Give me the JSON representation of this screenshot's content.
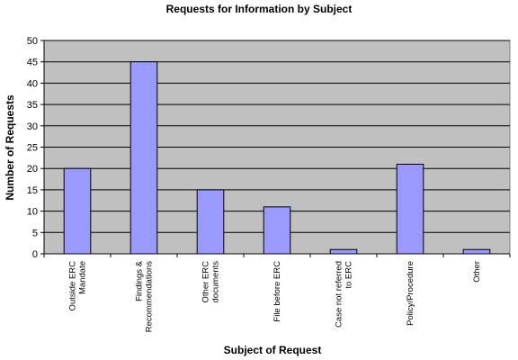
{
  "chart_data": {
    "type": "bar",
    "title": "Requests for Information by Subject",
    "xlabel": "Subject of Request",
    "ylabel": "Number of Requests",
    "categories": [
      "Outside ERC Mandate",
      "Findings & Recommendations",
      "Other ERC documents",
      "File before ERC",
      "Case not referred to ERC",
      "Policy/Procedure",
      "Other"
    ],
    "category_label_lines": [
      [
        "Outside ERC",
        "Mandate"
      ],
      [
        "Findings &",
        "Recommendations"
      ],
      [
        "Other ERC",
        "documents"
      ],
      [
        "File before ERC"
      ],
      [
        "Case not referred",
        "to ERC"
      ],
      [
        "Policy/Procedure"
      ],
      [
        "Other"
      ]
    ],
    "values": [
      20,
      45,
      15,
      11,
      1,
      21,
      1
    ],
    "ylim": [
      0,
      50
    ],
    "yticks": [
      0,
      5,
      10,
      15,
      20,
      25,
      30,
      35,
      40,
      45,
      50
    ],
    "grid": true,
    "legend": "none",
    "colors": {
      "plot_background": "#c0c0c0",
      "bar_fill": "#9999ff",
      "bar_stroke": "#000000",
      "gridline": "#000000"
    }
  }
}
